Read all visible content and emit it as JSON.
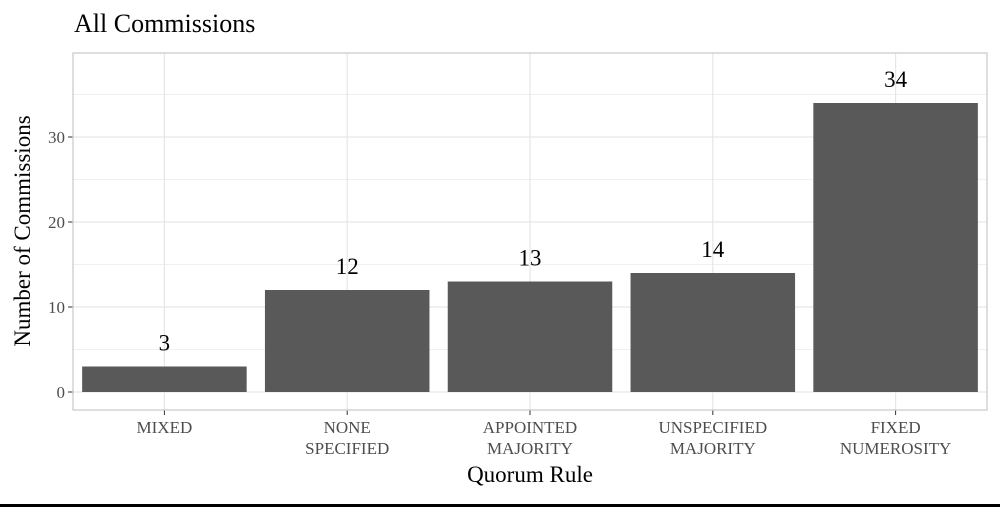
{
  "chart_data": {
    "type": "bar",
    "title": "All Commissions",
    "xlabel": "Quorum Rule",
    "ylabel": "Number of Commissions",
    "categories": [
      [
        "MIXED"
      ],
      [
        "NONE",
        "SPECIFIED"
      ],
      [
        "APPOINTED",
        "MAJORITY"
      ],
      [
        "UNSPECIFIED",
        "MAJORITY"
      ],
      [
        "FIXED",
        "NUMEROSITY"
      ]
    ],
    "values": [
      3,
      12,
      13,
      14,
      34
    ],
    "data_labels": [
      "3",
      "12",
      "13",
      "14",
      "34"
    ],
    "yticks": [
      0,
      10,
      20,
      30
    ],
    "ytick_labels": [
      "0",
      "10",
      "20",
      "30"
    ],
    "ylim": [
      0,
      36.9
    ],
    "grid": true,
    "legend": "none",
    "colors": {
      "bar": "#595959",
      "panel_border": "#cccccc",
      "grid_major": "#e6e6e6",
      "grid_minor": "#f0f0f0",
      "text": "#000000",
      "tick_text": "#4d4d4d"
    }
  }
}
